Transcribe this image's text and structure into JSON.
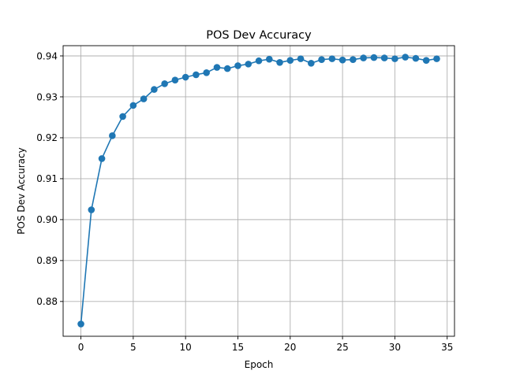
{
  "chart_data": {
    "type": "line",
    "title": "POS Dev Accuracy",
    "xlabel": "Epoch",
    "ylabel": "POS Dev Accuracy",
    "xlim": [
      -1.7,
      35.7
    ],
    "ylim": [
      0.8715,
      0.9425
    ],
    "xticks": [
      0,
      5,
      10,
      15,
      20,
      25,
      30,
      35
    ],
    "yticks": [
      0.88,
      0.89,
      0.9,
      0.91,
      0.92,
      0.93,
      0.94
    ],
    "ytick_labels": [
      "0.88",
      "0.89",
      "0.90",
      "0.91",
      "0.92",
      "0.93",
      "0.94"
    ],
    "grid": true,
    "marker": "circle",
    "color": "#1f77b4",
    "series": [
      {
        "x": [
          0,
          1,
          2,
          3,
          4,
          5,
          6,
          7,
          8,
          9,
          10,
          11,
          12,
          13,
          14,
          15,
          16,
          17,
          18,
          19,
          20,
          21,
          22,
          23,
          24,
          25,
          26,
          27,
          28,
          29,
          30,
          31,
          32,
          33,
          34
        ],
        "values": [
          0.8745,
          0.9024,
          0.9149,
          0.9205,
          0.9252,
          0.9279,
          0.9295,
          0.9318,
          0.9332,
          0.9341,
          0.9348,
          0.9354,
          0.9359,
          0.9372,
          0.9369,
          0.9376,
          0.938,
          0.9388,
          0.9392,
          0.9384,
          0.9389,
          0.9393,
          0.9382,
          0.9391,
          0.9393,
          0.939,
          0.9391,
          0.9395,
          0.9396,
          0.9395,
          0.9393,
          0.9397,
          0.9394,
          0.9389,
          0.9393
        ]
      }
    ]
  }
}
